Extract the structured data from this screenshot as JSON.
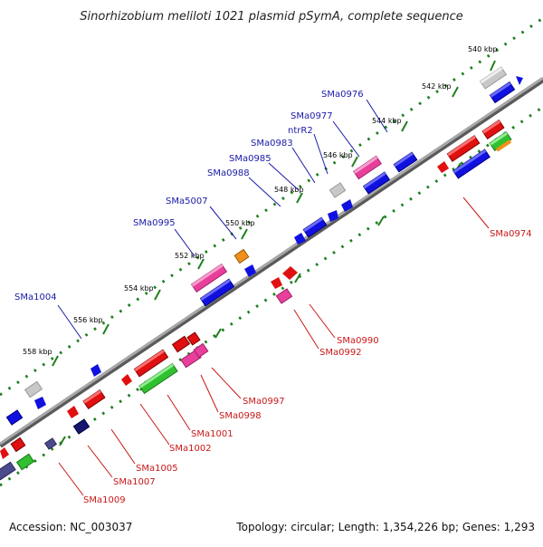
{
  "map": {
    "title": "Sinorhizobium meliloti 1021 plasmid pSymA, complete sequence",
    "footer": {
      "accession": "Accession: NC_003037",
      "summary": "Topology: circular; Length: 1,354,226 bp; Genes: 1,293"
    },
    "colors": {
      "forward_label": "#1a1aa8",
      "reverse_label": "#c81818",
      "tick_dots": "#1f7f1f",
      "backbone": "#8c8c8c",
      "blue_gene": "#1010e0",
      "red_gene": "#e01010",
      "pink_gene": "#e8409a",
      "green_gene": "#30c030",
      "grey_gene": "#c8c8c8",
      "orange_gene": "#f0901a",
      "navy_gene": "#16166e",
      "slate_gene": "#4a4a8c"
    },
    "kbp_ticks": [
      "540 kbp",
      "542 kbp",
      "544 kbp",
      "546 kbp",
      "548 kbp",
      "550 kbp",
      "552 kbp",
      "554 kbp",
      "556 kbp",
      "558 kbp"
    ],
    "forward_labels": [
      "SMa0976",
      "SMa0977",
      "ntrR2",
      "SMa0983",
      "SMa0985",
      "SMa0988",
      "SMa5007",
      "SMa0995",
      "SMa1004"
    ],
    "reverse_labels": [
      "SMa0974",
      "SMa0990",
      "SMa0992",
      "SMa0997",
      "SMa0998",
      "SMa1001",
      "SMa1002",
      "SMa1005",
      "SMa1007",
      "SMa1009"
    ]
  }
}
